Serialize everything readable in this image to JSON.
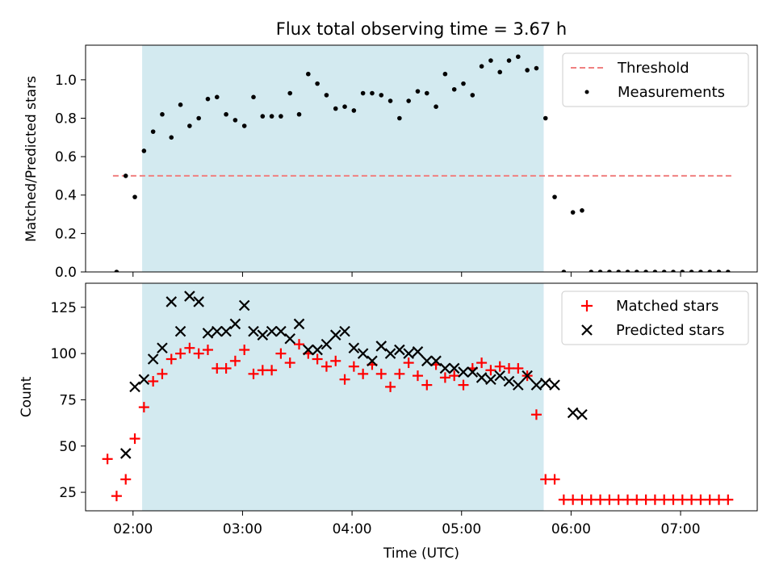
{
  "title": "Flux total observing time = 3.67 h",
  "chart_data": [
    {
      "type": "scatter",
      "panel": "top",
      "title": "Flux total observing time = 3.67 h",
      "xlabel": "",
      "ylabel": "Matched/Predicted stars",
      "xlim": [
        "01:34",
        "07:42"
      ],
      "ylim": [
        0.0,
        1.18
      ],
      "yticks": [
        0.0,
        0.2,
        0.4,
        0.6,
        0.8,
        1.0
      ],
      "ytick_labels": [
        "0.0",
        "0.2",
        "0.4",
        "0.6",
        "0.8",
        "1.0"
      ],
      "shaded_region": {
        "start": "02:05",
        "end": "05:45",
        "color": "#d3eaf0"
      },
      "threshold_line": {
        "name": "Threshold",
        "y": 0.5,
        "x_start": "01:49",
        "x_end": "07:28",
        "color": "#f08080",
        "style": "dashed"
      },
      "series": [
        {
          "name": "Measurements",
          "color": "#000000",
          "marker": "dot",
          "x": [
            "01:51",
            "01:56",
            "02:01",
            "02:06",
            "02:11",
            "02:16",
            "02:21",
            "02:26",
            "02:31",
            "02:36",
            "02:41",
            "02:46",
            "02:51",
            "02:56",
            "03:01",
            "03:06",
            "03:11",
            "03:16",
            "03:21",
            "03:26",
            "03:31",
            "03:36",
            "03:41",
            "03:46",
            "03:51",
            "03:56",
            "04:01",
            "04:06",
            "04:11",
            "04:16",
            "04:21",
            "04:26",
            "04:31",
            "04:36",
            "04:41",
            "04:46",
            "04:51",
            "04:56",
            "05:01",
            "05:06",
            "05:11",
            "05:16",
            "05:21",
            "05:26",
            "05:31",
            "05:36",
            "05:41",
            "05:46",
            "05:51",
            "05:56",
            "06:01",
            "06:06",
            "06:11",
            "06:16",
            "06:21",
            "06:26",
            "06:31",
            "06:36",
            "06:41",
            "06:46",
            "06:51",
            "06:56",
            "07:01",
            "07:06",
            "07:11",
            "07:16",
            "07:21",
            "07:26"
          ],
          "y": [
            0.0,
            0.5,
            0.39,
            0.63,
            0.73,
            0.82,
            0.7,
            0.87,
            0.76,
            0.8,
            0.9,
            0.91,
            0.82,
            0.79,
            0.76,
            0.91,
            0.81,
            0.81,
            0.81,
            0.93,
            0.82,
            1.03,
            0.98,
            0.92,
            0.85,
            0.86,
            0.84,
            0.93,
            0.93,
            0.92,
            0.89,
            0.8,
            0.89,
            0.94,
            0.93,
            0.86,
            1.03,
            0.95,
            0.98,
            0.92,
            1.07,
            1.1,
            1.04,
            1.1,
            1.12,
            1.05,
            1.06,
            0.8,
            0.39,
            0.0,
            0.31,
            0.32,
            0.0,
            0.0,
            0.0,
            0.0,
            0.0,
            0.0,
            0.0,
            0.0,
            0.0,
            0.0,
            0.0,
            0.0,
            0.0,
            0.0,
            0.0,
            0.0
          ]
        }
      ],
      "legend": {
        "position": "top-right",
        "entries": [
          "Threshold",
          "Measurements"
        ]
      }
    },
    {
      "type": "scatter",
      "panel": "bottom",
      "xlabel": "Time (UTC)",
      "ylabel": "Count",
      "xlim": [
        "01:34",
        "07:42"
      ],
      "ylim": [
        15,
        138
      ],
      "yticks": [
        25,
        50,
        75,
        100,
        125
      ],
      "ytick_labels": [
        "25",
        "50",
        "75",
        "100",
        "125"
      ],
      "xticks": [
        "02:00",
        "03:00",
        "04:00",
        "05:00",
        "06:00",
        "07:00"
      ],
      "xtick_labels": [
        "02:00",
        "03:00",
        "04:00",
        "05:00",
        "06:00",
        "07:00"
      ],
      "shaded_region": {
        "start": "02:05",
        "end": "05:45",
        "color": "#d3eaf0"
      },
      "series": [
        {
          "name": "Matched stars",
          "color": "#ff0000",
          "marker": "plus",
          "x": [
            "01:46",
            "01:51",
            "01:56",
            "02:01",
            "02:06",
            "02:11",
            "02:16",
            "02:21",
            "02:26",
            "02:31",
            "02:36",
            "02:41",
            "02:46",
            "02:51",
            "02:56",
            "03:01",
            "03:06",
            "03:11",
            "03:16",
            "03:21",
            "03:26",
            "03:31",
            "03:36",
            "03:41",
            "03:46",
            "03:51",
            "03:56",
            "04:01",
            "04:06",
            "04:11",
            "04:16",
            "04:21",
            "04:26",
            "04:31",
            "04:36",
            "04:41",
            "04:46",
            "04:51",
            "04:56",
            "05:01",
            "05:06",
            "05:11",
            "05:16",
            "05:21",
            "05:26",
            "05:31",
            "05:36",
            "05:41",
            "05:46",
            "05:51",
            "05:56",
            "06:01",
            "06:06",
            "06:11",
            "06:16",
            "06:21",
            "06:26",
            "06:31",
            "06:36",
            "06:41",
            "06:46",
            "06:51",
            "06:56",
            "07:01",
            "07:06",
            "07:11",
            "07:16",
            "07:21",
            "07:26"
          ],
          "y": [
            43,
            23,
            32,
            54,
            71,
            85,
            89,
            97,
            100,
            103,
            100,
            102,
            92,
            92,
            96,
            102,
            89,
            91,
            91,
            100,
            95,
            105,
            100,
            97,
            93,
            96,
            86,
            93,
            89,
            94,
            89,
            82,
            89,
            95,
            88,
            83,
            94,
            87,
            88,
            83,
            92,
            95,
            91,
            93,
            92,
            92,
            88,
            67,
            32,
            32,
            21,
            21,
            21,
            21,
            21,
            21,
            21,
            21,
            21,
            21,
            21,
            21,
            21,
            21,
            21,
            21,
            21,
            21,
            21
          ]
        },
        {
          "name": "Predicted stars",
          "color": "#000000",
          "marker": "x",
          "x": [
            "01:56",
            "02:01",
            "02:06",
            "02:11",
            "02:16",
            "02:21",
            "02:26",
            "02:31",
            "02:36",
            "02:41",
            "02:46",
            "02:51",
            "02:56",
            "03:01",
            "03:06",
            "03:11",
            "03:16",
            "03:21",
            "03:26",
            "03:31",
            "03:36",
            "03:41",
            "03:46",
            "03:51",
            "03:56",
            "04:01",
            "04:06",
            "04:11",
            "04:16",
            "04:21",
            "04:26",
            "04:31",
            "04:36",
            "04:41",
            "04:46",
            "04:51",
            "04:56",
            "05:01",
            "05:06",
            "05:11",
            "05:16",
            "05:21",
            "05:26",
            "05:31",
            "05:36",
            "05:41",
            "05:46",
            "05:51",
            "06:01",
            "06:06"
          ],
          "y": [
            46,
            82,
            86,
            97,
            103,
            128,
            112,
            131,
            128,
            111,
            112,
            112,
            116,
            126,
            112,
            110,
            112,
            112,
            108,
            116,
            102,
            102,
            105,
            110,
            112,
            103,
            100,
            96,
            104,
            100,
            102,
            100,
            101,
            96,
            96,
            92,
            92,
            90,
            90,
            87,
            86,
            88,
            85,
            83,
            88,
            83,
            84,
            83,
            68,
            67
          ]
        }
      ],
      "legend": {
        "position": "top-right",
        "entries": [
          "Matched stars",
          "Predicted stars"
        ]
      }
    }
  ]
}
